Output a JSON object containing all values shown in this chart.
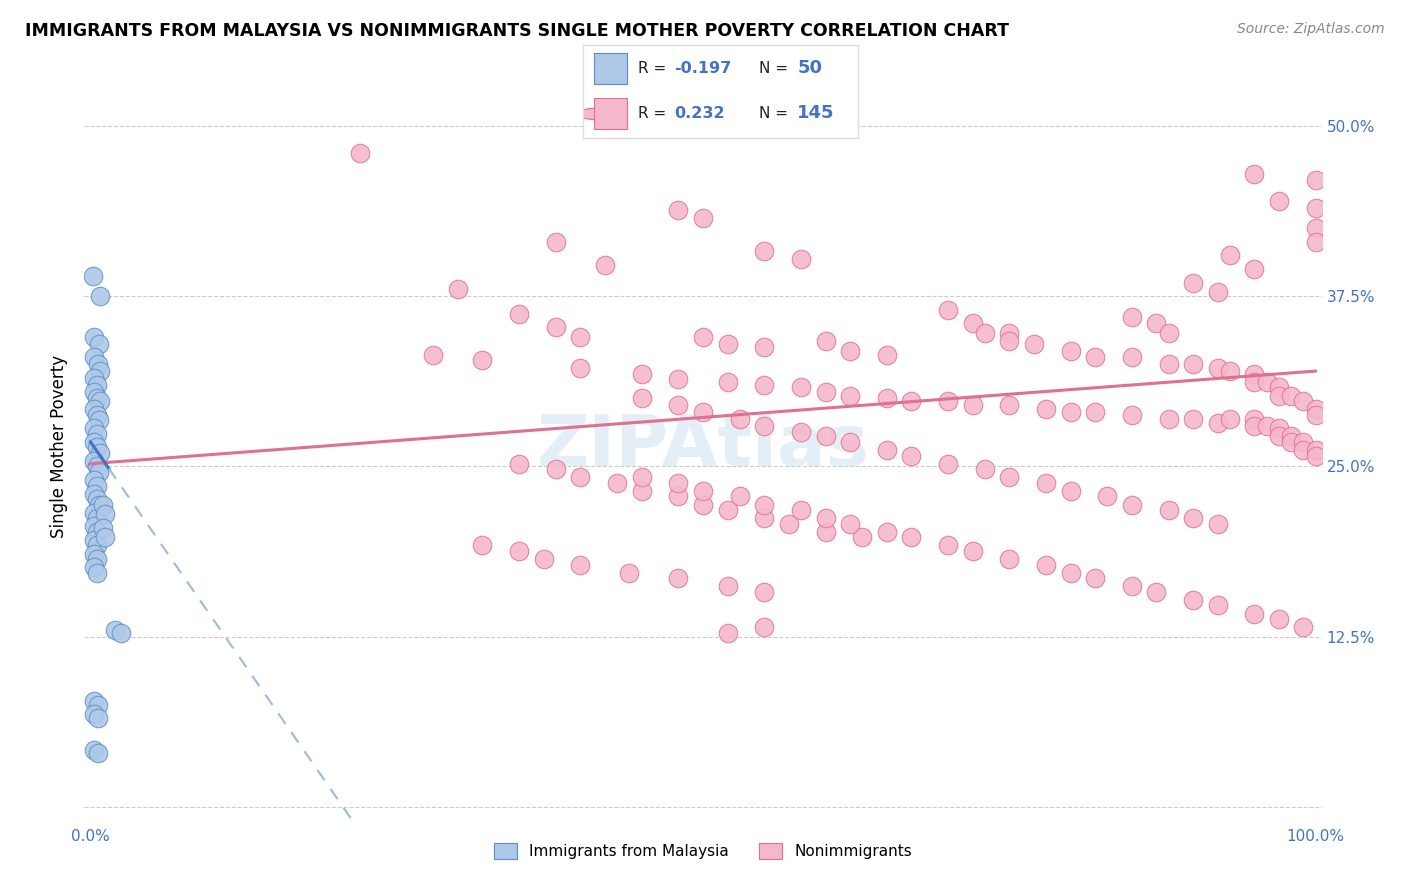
{
  "title": "IMMIGRANTS FROM MALAYSIA VS NONIMMIGRANTS SINGLE MOTHER POVERTY CORRELATION CHART",
  "source": "Source: ZipAtlas.com",
  "ylabel": "Single Mother Poverty",
  "xlim": [
    0.0,
    1.0
  ],
  "ylim": [
    0.0,
    0.52
  ],
  "xtick_positions": [
    0.0,
    0.1,
    0.2,
    0.3,
    0.4,
    0.5,
    0.6,
    0.7,
    0.8,
    0.9,
    1.0
  ],
  "xticklabels": [
    "0.0%",
    "",
    "",
    "",
    "",
    "",
    "",
    "",
    "",
    "",
    "100.0%"
  ],
  "ytick_positions": [
    0.0,
    0.125,
    0.25,
    0.375,
    0.5
  ],
  "yticklabels": [
    "",
    "12.5%",
    "25.0%",
    "37.5%",
    "50.0%"
  ],
  "legend1_label": "Immigrants from Malaysia",
  "legend2_label": "Nonimmigrants",
  "R1": -0.197,
  "N1": 50,
  "R2": 0.232,
  "N2": 145,
  "color_blue": "#adc8e8",
  "color_pink": "#f5b8cb",
  "edge_blue": "#5b8ec4",
  "edge_pink": "#e07090",
  "trendline_blue_solid": "#4472c4",
  "trendline_blue_dash": "#9bbbd8",
  "trendline_pink": "#e07090",
  "watermark_color": "#c8dff0",
  "blue_points": [
    [
      0.002,
      0.39
    ],
    [
      0.008,
      0.375
    ],
    [
      0.003,
      0.345
    ],
    [
      0.007,
      0.34
    ],
    [
      0.003,
      0.33
    ],
    [
      0.006,
      0.325
    ],
    [
      0.008,
      0.32
    ],
    [
      0.003,
      0.315
    ],
    [
      0.005,
      0.31
    ],
    [
      0.003,
      0.305
    ],
    [
      0.005,
      0.3
    ],
    [
      0.008,
      0.298
    ],
    [
      0.003,
      0.292
    ],
    [
      0.005,
      0.288
    ],
    [
      0.007,
      0.284
    ],
    [
      0.003,
      0.278
    ],
    [
      0.005,
      0.274
    ],
    [
      0.003,
      0.268
    ],
    [
      0.005,
      0.264
    ],
    [
      0.008,
      0.26
    ],
    [
      0.003,
      0.254
    ],
    [
      0.005,
      0.25
    ],
    [
      0.007,
      0.246
    ],
    [
      0.003,
      0.24
    ],
    [
      0.005,
      0.236
    ],
    [
      0.003,
      0.23
    ],
    [
      0.005,
      0.226
    ],
    [
      0.007,
      0.222
    ],
    [
      0.003,
      0.216
    ],
    [
      0.005,
      0.212
    ],
    [
      0.003,
      0.206
    ],
    [
      0.005,
      0.202
    ],
    [
      0.003,
      0.196
    ],
    [
      0.005,
      0.192
    ],
    [
      0.01,
      0.222
    ],
    [
      0.012,
      0.215
    ],
    [
      0.01,
      0.205
    ],
    [
      0.012,
      0.198
    ],
    [
      0.003,
      0.186
    ],
    [
      0.005,
      0.182
    ],
    [
      0.003,
      0.176
    ],
    [
      0.005,
      0.172
    ],
    [
      0.02,
      0.13
    ],
    [
      0.025,
      0.128
    ],
    [
      0.003,
      0.078
    ],
    [
      0.006,
      0.075
    ],
    [
      0.003,
      0.042
    ],
    [
      0.006,
      0.04
    ],
    [
      0.003,
      0.068
    ],
    [
      0.006,
      0.065
    ]
  ],
  "pink_points": [
    [
      0.22,
      0.48
    ],
    [
      0.95,
      0.465
    ],
    [
      1.0,
      0.46
    ],
    [
      0.97,
      0.445
    ],
    [
      1.0,
      0.44
    ],
    [
      0.38,
      0.415
    ],
    [
      0.42,
      0.398
    ],
    [
      0.5,
      0.432
    ],
    [
      0.48,
      0.438
    ],
    [
      0.55,
      0.408
    ],
    [
      0.58,
      0.402
    ],
    [
      1.0,
      0.425
    ],
    [
      1.0,
      0.415
    ],
    [
      0.93,
      0.405
    ],
    [
      0.95,
      0.395
    ],
    [
      0.9,
      0.385
    ],
    [
      0.92,
      0.378
    ],
    [
      0.3,
      0.38
    ],
    [
      0.35,
      0.362
    ],
    [
      0.72,
      0.355
    ],
    [
      0.75,
      0.348
    ],
    [
      0.38,
      0.352
    ],
    [
      0.4,
      0.345
    ],
    [
      0.5,
      0.345
    ],
    [
      0.52,
      0.34
    ],
    [
      0.55,
      0.338
    ],
    [
      0.6,
      0.342
    ],
    [
      0.62,
      0.335
    ],
    [
      0.65,
      0.332
    ],
    [
      0.28,
      0.332
    ],
    [
      0.32,
      0.328
    ],
    [
      0.4,
      0.322
    ],
    [
      0.45,
      0.318
    ],
    [
      0.48,
      0.314
    ],
    [
      0.52,
      0.312
    ],
    [
      0.55,
      0.31
    ],
    [
      0.58,
      0.308
    ],
    [
      0.6,
      0.305
    ],
    [
      0.62,
      0.302
    ],
    [
      0.65,
      0.3
    ],
    [
      0.67,
      0.298
    ],
    [
      0.7,
      0.298
    ],
    [
      0.72,
      0.295
    ],
    [
      0.75,
      0.295
    ],
    [
      0.78,
      0.292
    ],
    [
      0.8,
      0.29
    ],
    [
      0.82,
      0.29
    ],
    [
      0.85,
      0.288
    ],
    [
      0.88,
      0.285
    ],
    [
      0.9,
      0.285
    ],
    [
      0.92,
      0.282
    ],
    [
      0.93,
      0.285
    ],
    [
      0.95,
      0.285
    ],
    [
      0.95,
      0.28
    ],
    [
      0.96,
      0.28
    ],
    [
      0.97,
      0.278
    ],
    [
      0.97,
      0.272
    ],
    [
      0.98,
      0.272
    ],
    [
      0.98,
      0.268
    ],
    [
      0.99,
      0.268
    ],
    [
      0.99,
      0.262
    ],
    [
      1.0,
      0.262
    ],
    [
      1.0,
      0.258
    ],
    [
      0.73,
      0.348
    ],
    [
      0.75,
      0.342
    ],
    [
      0.77,
      0.34
    ],
    [
      0.8,
      0.335
    ],
    [
      0.82,
      0.33
    ],
    [
      0.85,
      0.33
    ],
    [
      0.88,
      0.325
    ],
    [
      0.9,
      0.325
    ],
    [
      0.92,
      0.322
    ],
    [
      0.93,
      0.32
    ],
    [
      0.95,
      0.318
    ],
    [
      0.95,
      0.312
    ],
    [
      0.96,
      0.312
    ],
    [
      0.97,
      0.308
    ],
    [
      0.97,
      0.302
    ],
    [
      0.98,
      0.302
    ],
    [
      0.99,
      0.298
    ],
    [
      1.0,
      0.292
    ],
    [
      1.0,
      0.288
    ],
    [
      0.45,
      0.3
    ],
    [
      0.48,
      0.295
    ],
    [
      0.5,
      0.29
    ],
    [
      0.53,
      0.285
    ],
    [
      0.55,
      0.28
    ],
    [
      0.58,
      0.275
    ],
    [
      0.6,
      0.272
    ],
    [
      0.62,
      0.268
    ],
    [
      0.65,
      0.262
    ],
    [
      0.67,
      0.258
    ],
    [
      0.7,
      0.252
    ],
    [
      0.73,
      0.248
    ],
    [
      0.75,
      0.242
    ],
    [
      0.78,
      0.238
    ],
    [
      0.8,
      0.232
    ],
    [
      0.83,
      0.228
    ],
    [
      0.85,
      0.222
    ],
    [
      0.88,
      0.218
    ],
    [
      0.9,
      0.212
    ],
    [
      0.92,
      0.208
    ],
    [
      0.35,
      0.252
    ],
    [
      0.38,
      0.248
    ],
    [
      0.4,
      0.242
    ],
    [
      0.43,
      0.238
    ],
    [
      0.45,
      0.232
    ],
    [
      0.48,
      0.228
    ],
    [
      0.5,
      0.222
    ],
    [
      0.52,
      0.218
    ],
    [
      0.55,
      0.212
    ],
    [
      0.57,
      0.208
    ],
    [
      0.6,
      0.202
    ],
    [
      0.63,
      0.198
    ],
    [
      0.32,
      0.192
    ],
    [
      0.35,
      0.188
    ],
    [
      0.37,
      0.182
    ],
    [
      0.4,
      0.178
    ],
    [
      0.44,
      0.172
    ],
    [
      0.48,
      0.168
    ],
    [
      0.52,
      0.162
    ],
    [
      0.55,
      0.158
    ],
    [
      0.52,
      0.128
    ],
    [
      0.55,
      0.132
    ],
    [
      0.45,
      0.242
    ],
    [
      0.48,
      0.238
    ],
    [
      0.5,
      0.232
    ],
    [
      0.53,
      0.228
    ],
    [
      0.55,
      0.222
    ],
    [
      0.58,
      0.218
    ],
    [
      0.6,
      0.212
    ],
    [
      0.62,
      0.208
    ],
    [
      0.65,
      0.202
    ],
    [
      0.67,
      0.198
    ],
    [
      0.7,
      0.192
    ],
    [
      0.72,
      0.188
    ],
    [
      0.75,
      0.182
    ],
    [
      0.78,
      0.178
    ],
    [
      0.8,
      0.172
    ],
    [
      0.82,
      0.168
    ],
    [
      0.85,
      0.162
    ],
    [
      0.87,
      0.158
    ],
    [
      0.9,
      0.152
    ],
    [
      0.92,
      0.148
    ],
    [
      0.95,
      0.142
    ],
    [
      0.97,
      0.138
    ],
    [
      0.99,
      0.132
    ],
    [
      0.85,
      0.36
    ],
    [
      0.87,
      0.355
    ],
    [
      0.88,
      0.348
    ],
    [
      0.7,
      0.365
    ]
  ],
  "pink_trendline_x": [
    0.0,
    1.0
  ],
  "pink_trendline_y": [
    0.252,
    0.32
  ],
  "blue_trendline_x0": 0.0,
  "blue_trendline_x1_solid": 0.015,
  "blue_trendline_x1_dash": 0.28,
  "blue_trendline_y_at_0": 0.268,
  "blue_trendline_slope": -1.3
}
